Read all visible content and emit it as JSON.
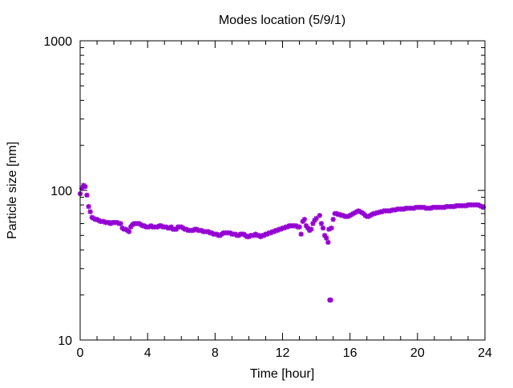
{
  "chart_data": {
    "type": "scatter",
    "title": "Modes location (5/9/1)",
    "xlabel": "Time [hour]",
    "ylabel": "Particle size [nm]",
    "x_range": [
      0,
      24
    ],
    "y_range": [
      10,
      1000
    ],
    "y_scale": "log",
    "x_ticks": [
      0,
      4,
      8,
      12,
      16,
      20,
      24
    ],
    "y_ticks": [
      10,
      100,
      1000
    ],
    "grid": false,
    "legend": "none",
    "marker": "asterisk",
    "marker_color": "#9400d3",
    "series": [
      {
        "x": [
          0.0,
          0.1,
          0.2,
          0.3,
          0.4,
          0.5,
          0.6,
          0.7,
          0.8,
          0.9,
          1.0,
          1.1,
          1.2,
          1.3,
          1.4,
          1.5,
          1.6,
          1.7,
          1.8,
          1.9,
          2.0,
          2.1,
          2.2,
          2.3,
          2.4,
          2.5,
          2.6,
          2.7,
          2.8,
          2.9,
          3.0,
          3.1,
          3.2,
          3.3,
          3.4,
          3.5,
          3.6,
          3.7,
          3.8,
          3.9,
          4.0,
          4.1,
          4.2,
          4.3,
          4.4,
          4.5,
          4.6,
          4.7,
          4.8,
          4.9,
          5.0,
          5.1,
          5.2,
          5.3,
          5.4,
          5.5,
          5.6,
          5.7,
          5.8,
          5.9,
          6.0,
          6.1,
          6.2,
          6.3,
          6.4,
          6.5,
          6.6,
          6.7,
          6.8,
          6.9,
          7.0,
          7.1,
          7.2,
          7.3,
          7.4,
          7.5,
          7.6,
          7.7,
          7.8,
          7.9,
          8.0,
          8.1,
          8.2,
          8.3,
          8.4,
          8.5,
          8.6,
          8.7,
          8.8,
          8.9,
          9.0,
          9.1,
          9.2,
          9.3,
          9.4,
          9.5,
          9.6,
          9.7,
          9.8,
          9.9,
          10.0,
          10.1,
          10.2,
          10.3,
          10.4,
          10.5,
          10.6,
          10.7,
          10.8,
          10.9,
          11.0,
          11.1,
          11.2,
          11.3,
          11.4,
          11.5,
          11.6,
          11.7,
          11.8,
          11.9,
          12.0,
          12.1,
          12.2,
          12.3,
          12.4,
          12.5,
          12.6,
          12.7,
          12.8,
          12.9,
          13.0,
          13.1,
          13.2,
          13.3,
          13.4,
          13.5,
          13.6,
          13.7,
          13.8,
          13.9,
          14.0,
          14.2,
          14.3,
          14.4,
          14.5,
          14.6,
          14.7,
          14.75,
          14.8,
          14.85,
          14.9,
          15.0,
          15.1,
          15.2,
          15.3,
          15.4,
          15.5,
          15.6,
          15.7,
          15.8,
          15.9,
          16.0,
          16.1,
          16.2,
          16.3,
          16.4,
          16.5,
          16.6,
          16.7,
          16.8,
          16.9,
          17.0,
          17.1,
          17.2,
          17.3,
          17.4,
          17.5,
          17.6,
          17.7,
          17.8,
          17.9,
          18.0,
          18.1,
          18.2,
          18.3,
          18.4,
          18.5,
          18.6,
          18.7,
          18.8,
          18.9,
          19.0,
          19.1,
          19.2,
          19.3,
          19.4,
          19.5,
          19.6,
          19.7,
          19.8,
          19.9,
          20.0,
          20.1,
          20.2,
          20.3,
          20.4,
          20.5,
          20.6,
          20.7,
          20.8,
          20.9,
          21.0,
          21.1,
          21.2,
          21.3,
          21.4,
          21.5,
          21.6,
          21.7,
          21.8,
          21.9,
          22.0,
          22.1,
          22.2,
          22.3,
          22.4,
          22.5,
          22.6,
          22.7,
          22.8,
          22.9,
          23.0,
          23.1,
          23.2,
          23.3,
          23.4,
          23.5,
          23.6,
          23.7,
          23.8,
          23.9
        ],
        "y": [
          95,
          103,
          108,
          106,
          93,
          78,
          72,
          66,
          65,
          64,
          64,
          63,
          62,
          62,
          62,
          61,
          61,
          61,
          60,
          61,
          61,
          61,
          61,
          60,
          60,
          56,
          55,
          55,
          54,
          53,
          57,
          59,
          60,
          60,
          60,
          60,
          59,
          58,
          58,
          57,
          57,
          57,
          58,
          57,
          57,
          57,
          57,
          58,
          58,
          57,
          57,
          57,
          56,
          56,
          57,
          55,
          55,
          55,
          57,
          57,
          57,
          56,
          55,
          55,
          54,
          54,
          54,
          54,
          55,
          55,
          54,
          54,
          54,
          53,
          53,
          53,
          53,
          52,
          52,
          51,
          51,
          51,
          50,
          50,
          51,
          52,
          52,
          52,
          52,
          52,
          51,
          51,
          51,
          50,
          50,
          51,
          51,
          51,
          50,
          49,
          49,
          50,
          50,
          50,
          51,
          50,
          50,
          49,
          50,
          50,
          51,
          51,
          52,
          52,
          53,
          53,
          54,
          54,
          55,
          55,
          56,
          56,
          57,
          57,
          58,
          58,
          58,
          58,
          58,
          57,
          57,
          51,
          62,
          64,
          58,
          56,
          54,
          55,
          60,
          63,
          65,
          68,
          60,
          56,
          50,
          48,
          45,
          55,
          18.5,
          18.5,
          56,
          64,
          70,
          70,
          69,
          69,
          68,
          68,
          67,
          67,
          67,
          68,
          69,
          70,
          71,
          72,
          73,
          72,
          71,
          70,
          68,
          67,
          67,
          68,
          69,
          70,
          70,
          71,
          71,
          72,
          72,
          73,
          73,
          73,
          73,
          73,
          74,
          74,
          74,
          75,
          75,
          75,
          75,
          75,
          76,
          76,
          76,
          76,
          76,
          76,
          77,
          77,
          77,
          77,
          77,
          77,
          76,
          76,
          76,
          76,
          77,
          77,
          77,
          77,
          77,
          77,
          77,
          77,
          78,
          78,
          78,
          78,
          78,
          78,
          79,
          79,
          79,
          79,
          79,
          79,
          79,
          80,
          80,
          80,
          80,
          80,
          80,
          80,
          79,
          78,
          77
        ]
      }
    ]
  }
}
